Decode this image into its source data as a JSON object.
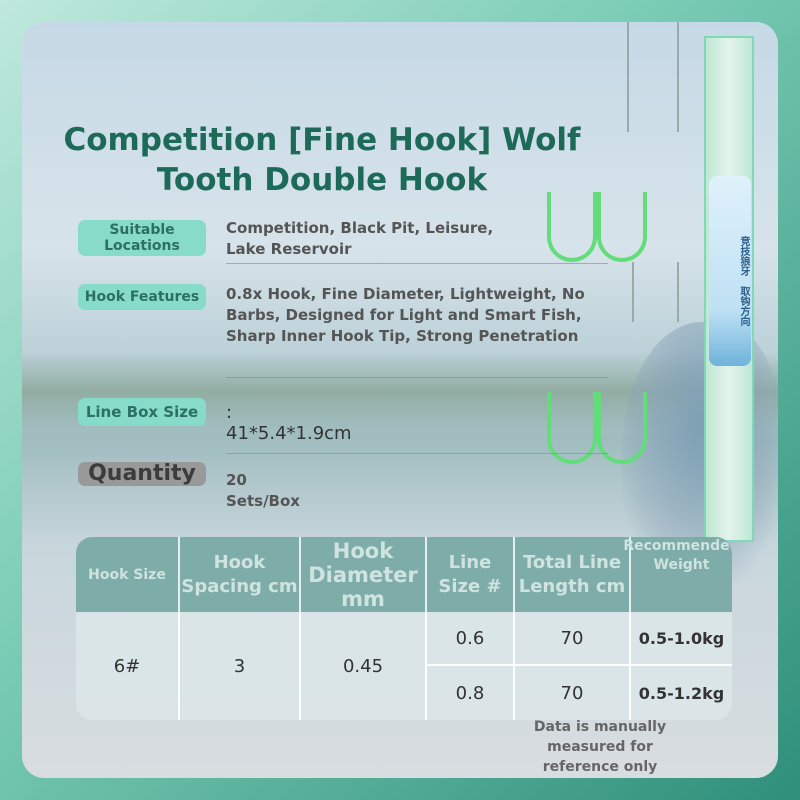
{
  "title": {
    "line1": "Competition [Fine Hook] Wolf",
    "line2": "Tooth Double Hook"
  },
  "specs": [
    {
      "label": "Suitable Locations",
      "value": "Competition, Black Pit, Leisure, Lake Reservoir"
    },
    {
      "label": "Hook Features",
      "value": "0.8x Hook, Fine Diameter, Lightweight, No Barbs, Designed for Light and Smart Fish, Sharp Inner Hook Tip, Strong Penetration"
    },
    {
      "label": "Line Box Size",
      "value": ": 41*5.4*1.9cm"
    },
    {
      "label": "Quantity",
      "value": "20 Sets/Box"
    }
  ],
  "product_box": {
    "brand_text": "竞技狼牙",
    "direction_text": "取钩方向"
  },
  "table": {
    "headers": [
      "Hook Size",
      "Hook Spacing cm",
      "Hook Diameter mm",
      "Line Size #",
      "Total Line Length cm",
      "Recommended Weight"
    ],
    "hook_size": "6#",
    "hook_spacing": "3",
    "hook_diameter": "0.45",
    "rows": [
      {
        "line_size": "0.6",
        "length": "70",
        "weight": "0.5-1.0kg"
      },
      {
        "line_size": "0.8",
        "length": "70",
        "weight": "0.5-1.2kg"
      }
    ]
  },
  "note": "Data is manually measured for reference only",
  "colors": {
    "title": "#1d6a58",
    "pill": "#86dcc8",
    "table_header": "#7eaca8",
    "hook": "#62dd7a"
  }
}
